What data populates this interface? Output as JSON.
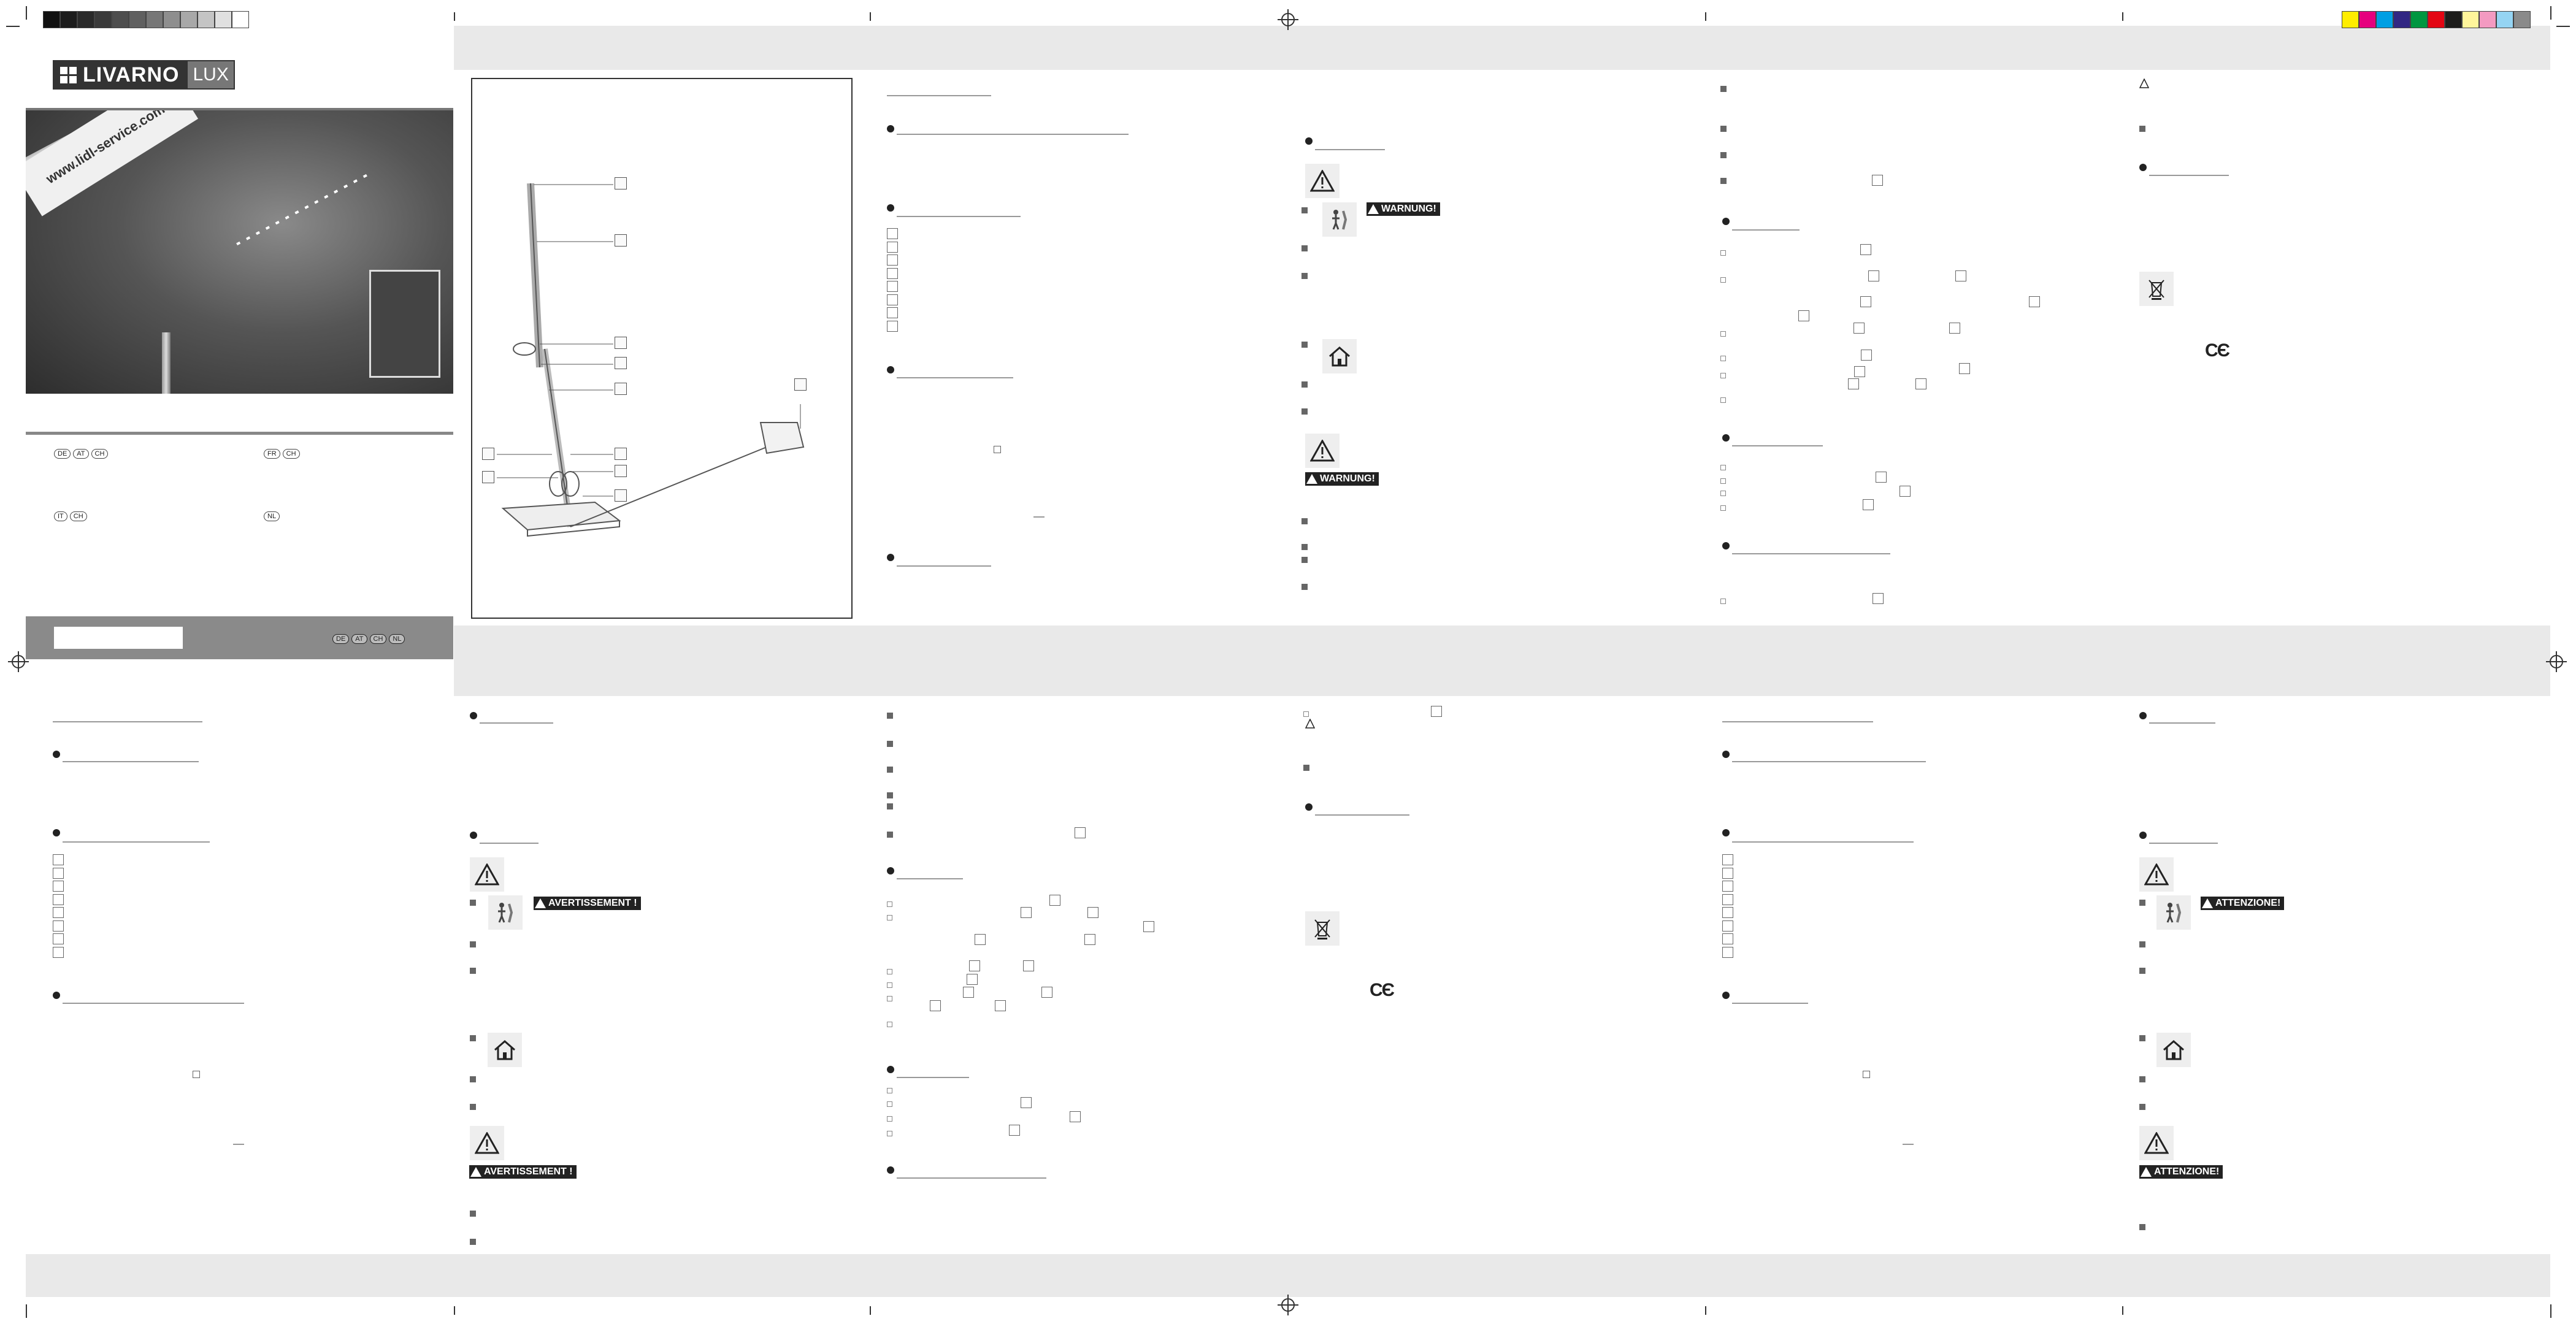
{
  "brand": {
    "name": "LIVARNO",
    "suffix": "LUX"
  },
  "cover": {
    "website": "www.lidl-service.com",
    "languages_left": [
      [
        "DE",
        "AT",
        "CH"
      ],
      [
        "IT",
        "CH"
      ]
    ],
    "languages_right": [
      [
        "FR",
        "CH"
      ],
      [
        "NL"
      ]
    ],
    "footer_languages": [
      "DE",
      "AT",
      "CH",
      "NL"
    ]
  },
  "warnings": {
    "de": "WARNUNG!",
    "fr": "AVERTISSEMENT !",
    "it": "ATTENZIONE!"
  },
  "colors": {
    "band": "#e9e9e9",
    "cover_strip": "#8a8a8a"
  },
  "color_bar": [
    "#ffed00",
    "#e6007e",
    "#009fe3",
    "#312783",
    "#009640",
    "#e30613",
    "#1d1d1b",
    "#fff59b",
    "#f39ac1",
    "#95d4f3",
    "#8a8a8a"
  ],
  "gray_bar": [
    "#111111",
    "#1d1d1d",
    "#2a2a2a",
    "#3a3a3a",
    "#4d4d4d",
    "#606060",
    "#777777",
    "#8e8e8e",
    "#a8a8a8",
    "#c4c4c4",
    "#e0e0e0",
    "#ffffff"
  ]
}
